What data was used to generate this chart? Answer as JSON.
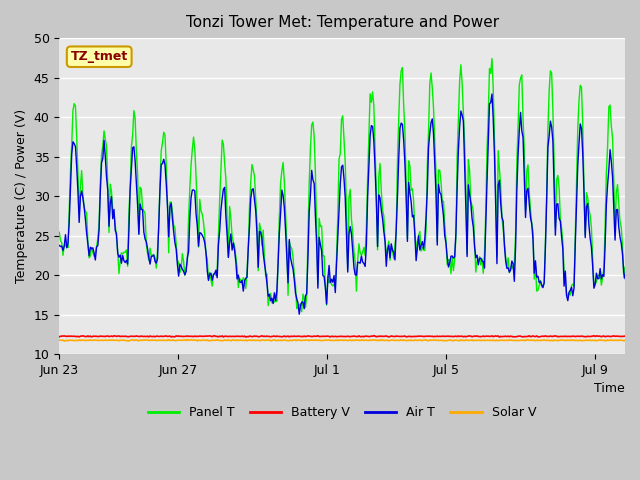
{
  "title": "Tonzi Tower Met: Temperature and Power",
  "xlabel": "Time",
  "ylabel": "Temperature (C) / Power (V)",
  "ylim": [
    10,
    50
  ],
  "yticks": [
    10,
    15,
    20,
    25,
    30,
    35,
    40,
    45,
    50
  ],
  "x_tick_labels": [
    "Jun 23",
    "Jun 27",
    "Jul 1",
    "Jul 5",
    "Jul 9"
  ],
  "x_tick_positions": [
    0,
    4,
    9,
    13,
    18
  ],
  "plot_bg_color": "#e8e8e8",
  "fig_bg_color": "#c8c8c8",
  "panel_t_color": "#00ee00",
  "air_t_color": "#0000dd",
  "battery_v_color": "#ff0000",
  "solar_v_color": "#ffaa00",
  "annotation_text": "TZ_tmet",
  "annotation_bg": "#ffffaa",
  "annotation_border": "#cc9900",
  "annotation_text_color": "#880000",
  "n_days": 19,
  "battery_v_value": 12.25,
  "solar_v_value": 11.75
}
